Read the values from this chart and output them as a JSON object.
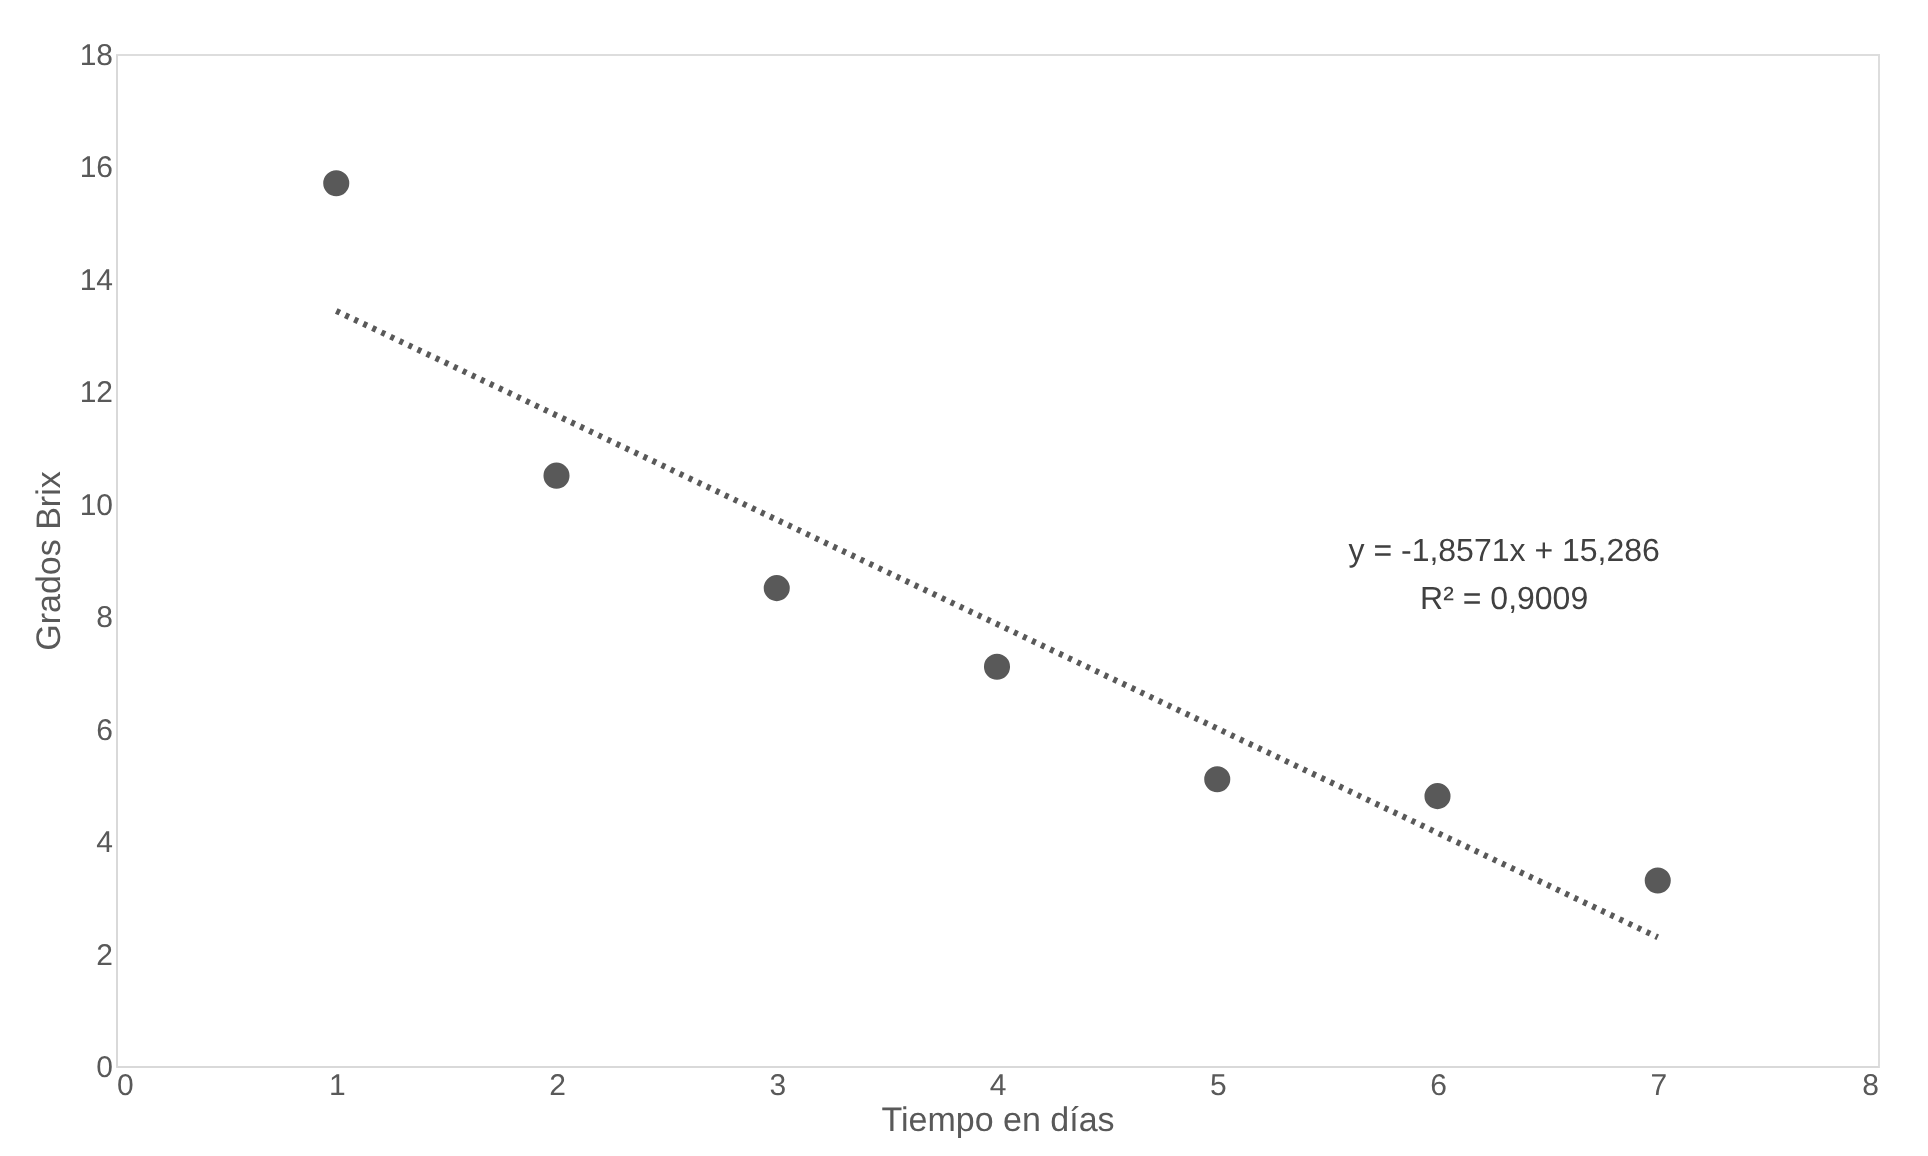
{
  "chart_data": {
    "type": "scatter",
    "xlabel": "Tiempo en días",
    "ylabel": "Grados Brix",
    "x": [
      1,
      2,
      3,
      4,
      5,
      6,
      7
    ],
    "series": [
      {
        "type": "scatter",
        "color": "#595959",
        "marker": "circle",
        "values": [
          15.7,
          10.5,
          8.5,
          7.1,
          5.1,
          4.8,
          3.3
        ]
      },
      {
        "type": "line",
        "color": "#595959",
        "line_style": "dotted",
        "x": [
          1,
          7
        ],
        "values": [
          13.43,
          2.29
        ]
      }
    ],
    "annotations": [
      "y = -1,8571x + 15,286",
      "R² = 0,9009"
    ],
    "xlim": [
      0,
      8
    ],
    "xticks": [
      0,
      1,
      2,
      3,
      4,
      5,
      6,
      7,
      8
    ],
    "ylim": [
      0,
      18
    ],
    "yticks": [
      0,
      2,
      4,
      6,
      8,
      10,
      12,
      14,
      16,
      18
    ],
    "grid": false
  }
}
